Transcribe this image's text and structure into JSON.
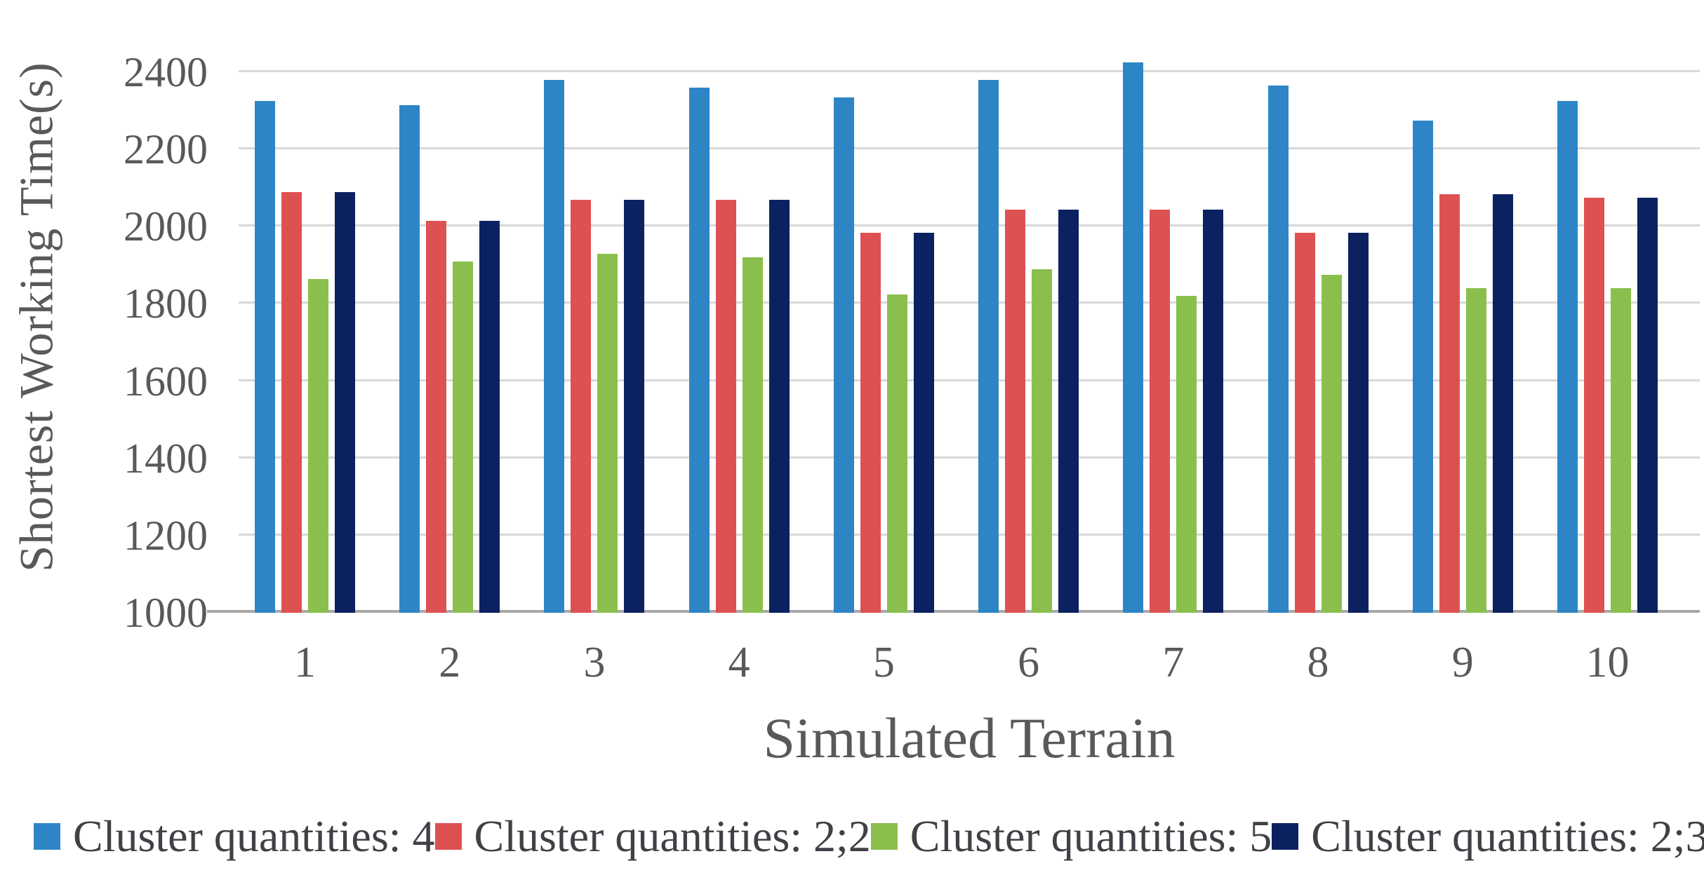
{
  "chart_data": {
    "type": "bar",
    "title": "",
    "xlabel": "Simulated Terrain",
    "ylabel": "Shortest Working Time(s)",
    "categories": [
      "1",
      "2",
      "3",
      "4",
      "5",
      "6",
      "7",
      "8",
      "9",
      "10"
    ],
    "series": [
      {
        "name": "Cluster quantities: 4",
        "color": "#2E85C6",
        "values": [
          2325,
          2315,
          2380,
          2360,
          2335,
          2380,
          2425,
          2365,
          2275,
          2325
        ]
      },
      {
        "name": "Cluster quantities: 2;2",
        "color": "#DE5152",
        "values": [
          2090,
          2015,
          2070,
          2070,
          1985,
          2045,
          2045,
          1985,
          2085,
          2075
        ]
      },
      {
        "name": "Cluster quantities: 5",
        "color": "#8ABF4D",
        "values": [
          1865,
          1910,
          1930,
          1920,
          1825,
          1890,
          1820,
          1875,
          1840,
          1840
        ]
      },
      {
        "name": "Cluster quantities: 2;3",
        "color": "#0C2160",
        "values": [
          2090,
          2015,
          2070,
          2070,
          1985,
          2045,
          2045,
          1985,
          2085,
          2075
        ]
      }
    ],
    "ylim": [
      1000,
      2500
    ],
    "yticks": [
      1000,
      1200,
      1400,
      1600,
      1800,
      2000,
      2200,
      2400
    ],
    "grid": true,
    "legend_position": "bottom",
    "colors": {
      "gridline": "#D8D8D8",
      "axis_line": "#A8A8A8",
      "tick_text": "#595959",
      "legend_text": "#404047"
    }
  }
}
